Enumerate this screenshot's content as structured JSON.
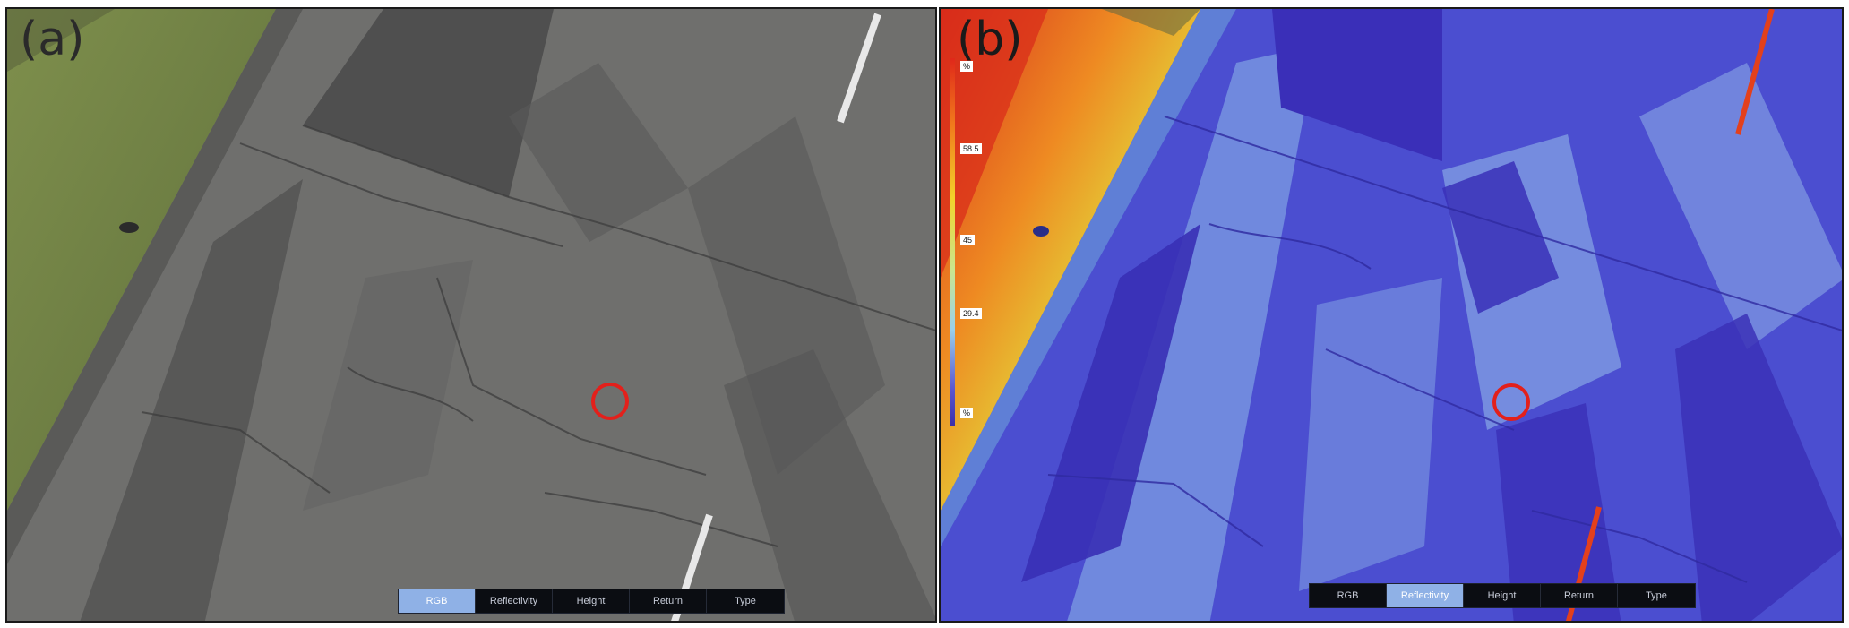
{
  "panels": {
    "a": {
      "label": "(a)",
      "modes": [
        "RGB",
        "Reflectivity",
        "Height",
        "Return",
        "Type"
      ],
      "active_mode": "RGB"
    },
    "b": {
      "label": "(b)",
      "modes": [
        "RGB",
        "Reflectivity",
        "Height",
        "Return",
        "Type"
      ],
      "active_mode": "Reflectivity",
      "colorbar_labels": [
        "%",
        "58.5",
        "45",
        "29.4",
        "%"
      ]
    }
  },
  "colors": {
    "target_circle": "#e3201b",
    "active_mode_bg": "#8fb1e6",
    "mode_bar_bg": "#0b0d12",
    "asphalt": "#6e6e6c",
    "grass": "#75854a",
    "reflectivity_low": "#3c3bc6",
    "reflectivity_high": "#e0281a"
  },
  "icons": {
    "target_marker": "red-circle-icon"
  }
}
